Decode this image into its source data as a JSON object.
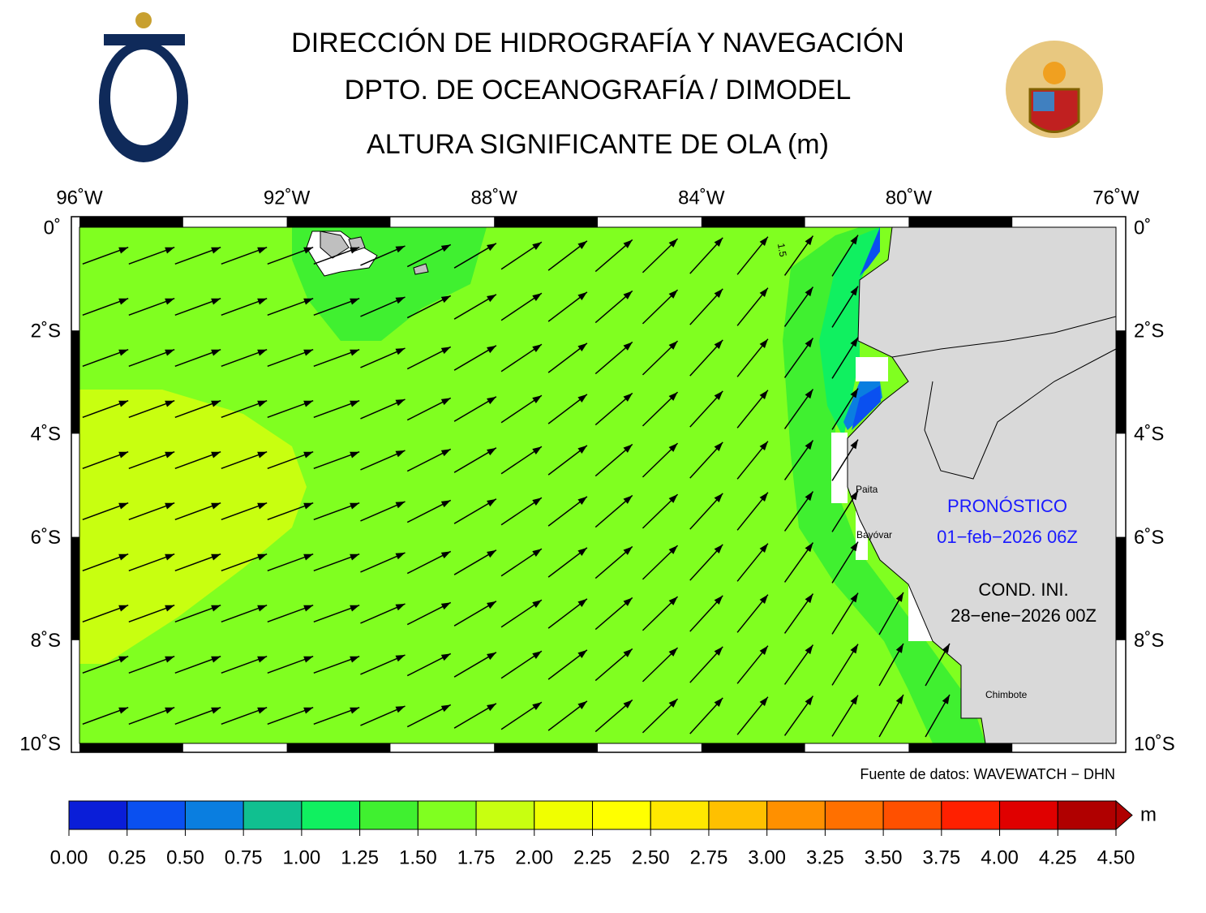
{
  "header": {
    "title_lines": [
      "DIRECCIÓN DE HIDROGRAFÍA Y NAVEGACIÓN",
      "DPTO. DE OCEANOGRAFÍA / DIMODEL",
      "ALTURA SIGNIFICANTE DE OLA (m)"
    ]
  },
  "map": {
    "lon_labels": [
      "96˚W",
      "92˚W",
      "88˚W",
      "84˚W",
      "80˚W",
      "76˚W"
    ],
    "lat_labels": [
      "0˚",
      "2˚S",
      "4˚S",
      "6˚S",
      "8˚S",
      "10˚S"
    ],
    "contour_label": "1.5",
    "places": [
      "Paita",
      "Bayóvar",
      "Chimbote"
    ],
    "forecast_label": "PRONÓSTICO",
    "forecast_date": "01−feb−2026 06Z",
    "init_label": "COND. INI.",
    "init_date": "28−ene−2026 00Z",
    "source": "Fuente de datos: WAVEWATCH − DHN"
  },
  "colorbar": {
    "unit": "m",
    "ticks": [
      "0.00",
      "0.25",
      "0.50",
      "0.75",
      "1.00",
      "1.25",
      "1.50",
      "1.75",
      "2.00",
      "2.25",
      "2.50",
      "2.75",
      "3.00",
      "3.25",
      "3.50",
      "3.75",
      "4.00",
      "4.25",
      "4.50"
    ],
    "colors": [
      "#0a1ed8",
      "#0a50f0",
      "#0a7ee0",
      "#10c090",
      "#10f060",
      "#40f030",
      "#80ff20",
      "#c8ff10",
      "#f0ff00",
      "#ffff00",
      "#ffe800",
      "#ffc000",
      "#ff9000",
      "#ff7000",
      "#ff5000",
      "#ff2000",
      "#e00000",
      "#b00000"
    ]
  }
}
